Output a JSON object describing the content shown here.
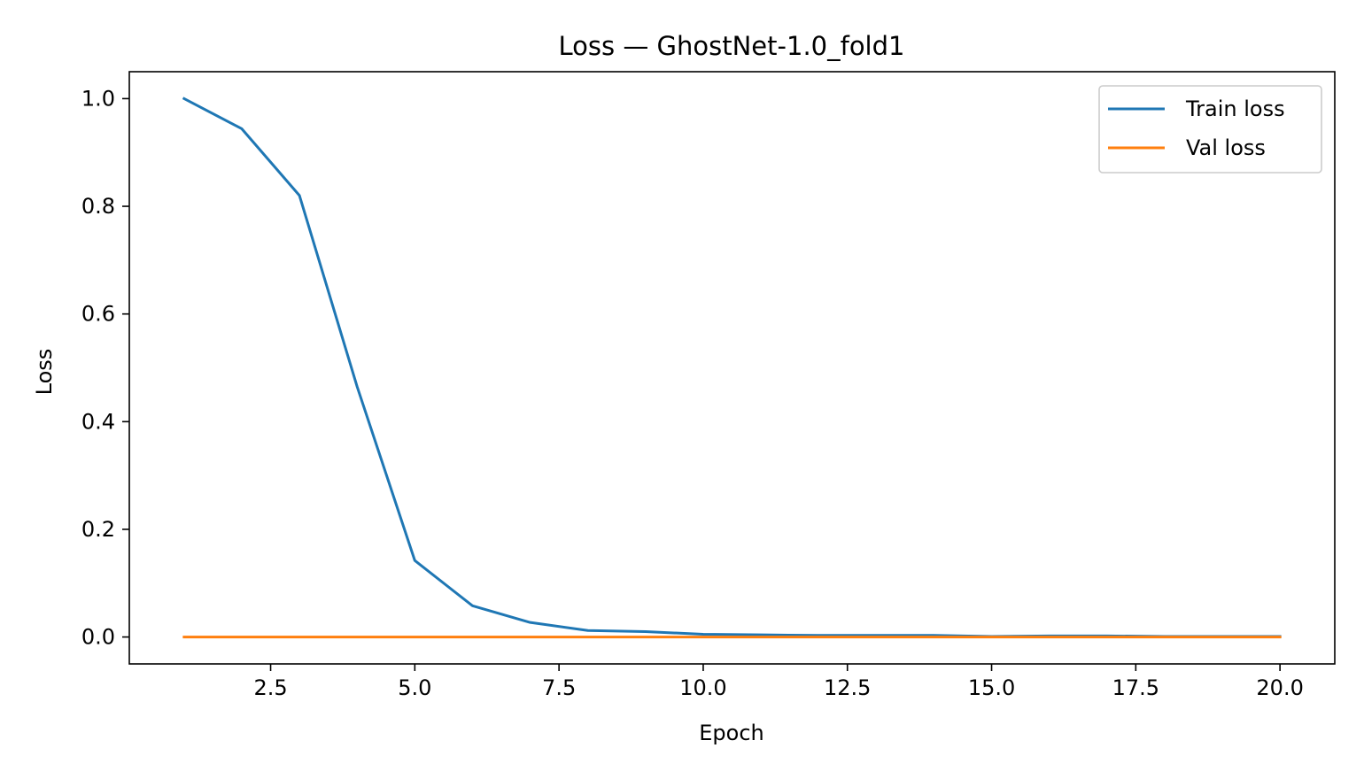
{
  "chart_data": {
    "type": "line",
    "title": "Loss — GhostNet-1.0_fold1",
    "xlabel": "Epoch",
    "ylabel": "Loss",
    "xlim": [
      0.05,
      20.95
    ],
    "ylim": [
      -0.05,
      1.05
    ],
    "xticks": [
      2.5,
      5.0,
      7.5,
      10.0,
      12.5,
      15.0,
      17.5,
      20.0
    ],
    "xtick_labels": [
      "2.5",
      "5.0",
      "7.5",
      "10.0",
      "12.5",
      "15.0",
      "17.5",
      "20.0"
    ],
    "yticks": [
      0.0,
      0.2,
      0.4,
      0.6,
      0.8,
      1.0
    ],
    "ytick_labels": [
      "0.0",
      "0.2",
      "0.4",
      "0.6",
      "0.8",
      "1.0"
    ],
    "grid": false,
    "legend_position": "top-right",
    "x": [
      1,
      2,
      3,
      4,
      5,
      6,
      7,
      8,
      9,
      10,
      11,
      12,
      13,
      14,
      15,
      16,
      17,
      18,
      19,
      20
    ],
    "series": [
      {
        "name": "Train loss",
        "color": "#1f77b4",
        "values": [
          1.0,
          0.944,
          0.82,
          0.465,
          0.142,
          0.058,
          0.027,
          0.012,
          0.01,
          0.005,
          0.004,
          0.003,
          0.003,
          0.003,
          0.001,
          0.002,
          0.002,
          0.001,
          0.001,
          0.001
        ]
      },
      {
        "name": "Val loss",
        "color": "#ff7f0e",
        "values": [
          0.0,
          0.0,
          0.0,
          0.0,
          0.0,
          0.0,
          0.0,
          0.0,
          0.0,
          0.0,
          0.0,
          0.0,
          0.0,
          0.0,
          0.0,
          0.0,
          0.0,
          0.0,
          0.0,
          0.0
        ]
      }
    ]
  }
}
